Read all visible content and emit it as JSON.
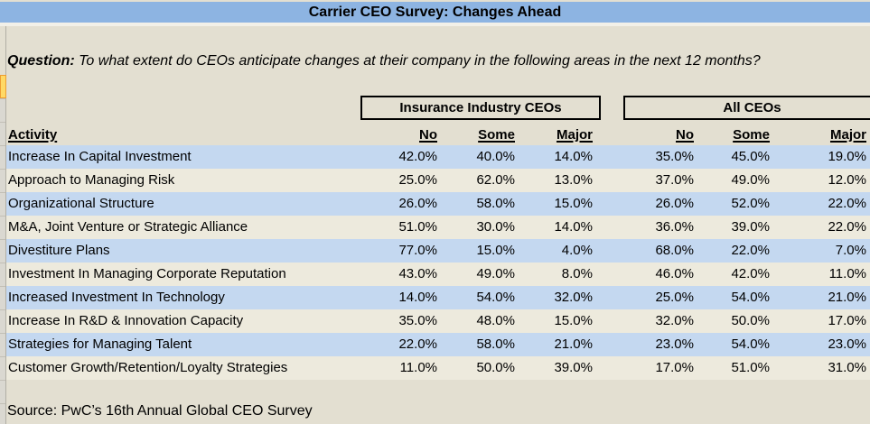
{
  "title": "Carrier CEO Survey: Changes Ahead",
  "question": {
    "label": "Question:",
    "text": "To what extent do CEOs anticipate changes at their company in the following areas in the next 12 months?"
  },
  "table": {
    "activity_header": "Activity",
    "groups": [
      {
        "label": "Insurance Industry CEOs"
      },
      {
        "label": "All CEOs"
      }
    ],
    "sub_headers": [
      "No",
      "Some",
      "Major"
    ],
    "rows": [
      {
        "activity": "Increase In Capital Investment",
        "insurance": [
          "42.0%",
          "40.0%",
          "14.0%"
        ],
        "all": [
          "35.0%",
          "45.0%",
          "19.0%"
        ]
      },
      {
        "activity": "Approach to Managing Risk",
        "insurance": [
          "25.0%",
          "62.0%",
          "13.0%"
        ],
        "all": [
          "37.0%",
          "49.0%",
          "12.0%"
        ]
      },
      {
        "activity": "Organizational Structure",
        "insurance": [
          "26.0%",
          "58.0%",
          "15.0%"
        ],
        "all": [
          "26.0%",
          "52.0%",
          "22.0%"
        ]
      },
      {
        "activity": "M&A, Joint Venture or Strategic Alliance",
        "insurance": [
          "51.0%",
          "30.0%",
          "14.0%"
        ],
        "all": [
          "36.0%",
          "39.0%",
          "22.0%"
        ]
      },
      {
        "activity": "Divestiture Plans",
        "insurance": [
          "77.0%",
          "15.0%",
          "4.0%"
        ],
        "all": [
          "68.0%",
          "22.0%",
          "7.0%"
        ]
      },
      {
        "activity": "Investment In Managing Corporate Reputation",
        "insurance": [
          "43.0%",
          "49.0%",
          "8.0%"
        ],
        "all": [
          "46.0%",
          "42.0%",
          "11.0%"
        ]
      },
      {
        "activity": "Increased Investment In Technology",
        "insurance": [
          "14.0%",
          "54.0%",
          "32.0%"
        ],
        "all": [
          "25.0%",
          "54.0%",
          "21.0%"
        ]
      },
      {
        "activity": "Increase In R&D & Innovation Capacity",
        "insurance": [
          "35.0%",
          "48.0%",
          "15.0%"
        ],
        "all": [
          "32.0%",
          "50.0%",
          "17.0%"
        ]
      },
      {
        "activity": "Strategies for Managing Talent",
        "insurance": [
          "22.0%",
          "58.0%",
          "21.0%"
        ],
        "all": [
          "23.0%",
          "54.0%",
          "23.0%"
        ]
      },
      {
        "activity": "Customer Growth/Retention/Loyalty Strategies",
        "insurance": [
          "11.0%",
          "50.0%",
          "39.0%"
        ],
        "all": [
          "17.0%",
          "51.0%",
          "31.0%"
        ]
      }
    ]
  },
  "source": "Source: PwC’s 16th Annual Global CEO Survey",
  "colors": {
    "title_bar": "#8db4e2",
    "row_blue": "#c4d8f0",
    "row_beige": "#edeadd",
    "background": "#e3dfd1",
    "highlight_yellow": "#ffd965",
    "highlight_border": "#ed9d31"
  }
}
